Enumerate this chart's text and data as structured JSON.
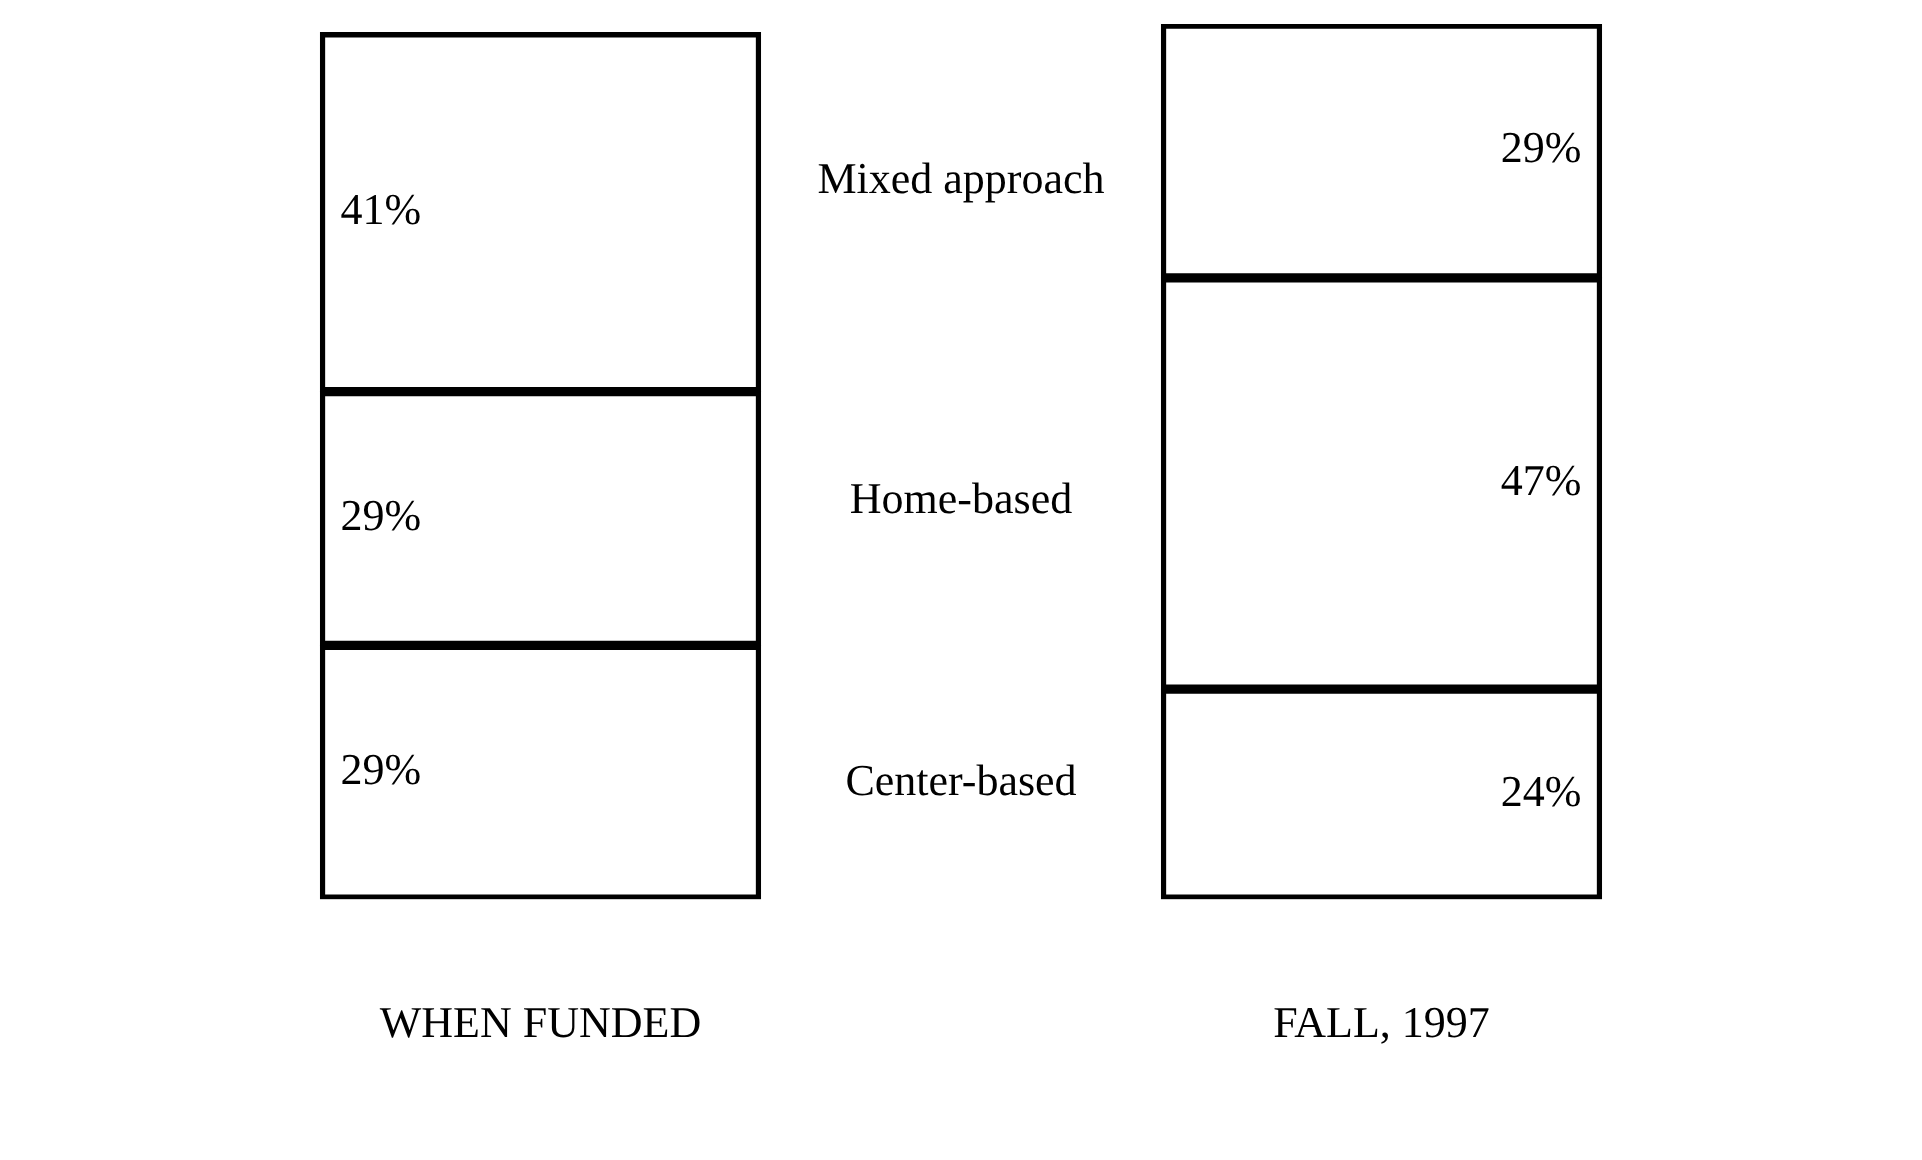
{
  "chart_data": {
    "type": "bar",
    "stacked": true,
    "legend": false,
    "categories": [
      "WHEN FUNDED",
      "FALL, 1997"
    ],
    "series": [
      {
        "name": "Center-based",
        "color": "#000000",
        "values": [
          29,
          24
        ],
        "value_labels": [
          "29%",
          "24%"
        ]
      },
      {
        "name": "Home-based",
        "color": "#000000",
        "values": [
          29,
          47
        ],
        "value_labels": [
          "29%",
          "47%"
        ]
      },
      {
        "name": "Mixed approach",
        "color": "#000000",
        "values": [
          41,
          29
        ],
        "value_labels": [
          "41%",
          "29%"
        ]
      }
    ]
  }
}
